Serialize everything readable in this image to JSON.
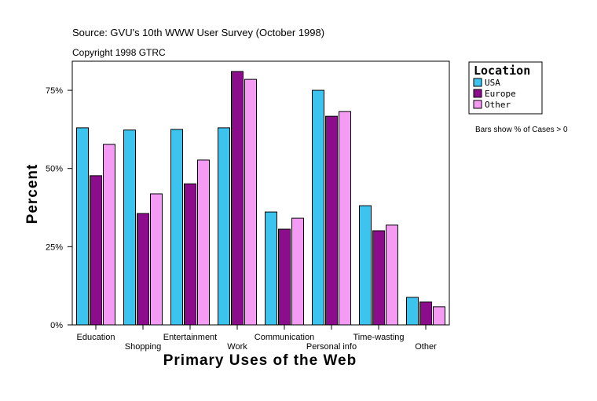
{
  "chart_data": {
    "type": "bar",
    "subtitle": "Source: GVU's 10th WWW User Survey (October 1998)",
    "copyright": "Copyright 1998 GTRC",
    "xlabel": "Primary Uses of the Web",
    "ylabel": "Percent",
    "legend_title": "Location",
    "note": "Bars show % of Cases > 0",
    "legend": "right",
    "categories": [
      "Education",
      "Shopping",
      "Entertainment",
      "Work",
      "Communication",
      "Personal info",
      "Time-wasting",
      "Other"
    ],
    "series": [
      {
        "name": "USA",
        "color": "#3cc4ee",
        "values": [
          63.0,
          62.3,
          62.5,
          63.0,
          36.1,
          75.0,
          38.1,
          8.8
        ]
      },
      {
        "name": "Europe",
        "color": "#8b0d8b",
        "values": [
          47.7,
          35.6,
          45.1,
          81.0,
          30.6,
          66.7,
          30.1,
          7.3
        ]
      },
      {
        "name": "Other",
        "color": "#f49cf4",
        "values": [
          57.7,
          41.9,
          52.7,
          78.5,
          34.1,
          68.2,
          31.9,
          5.8
        ]
      }
    ],
    "ylim": [
      0,
      84.3
    ],
    "yticks": [
      {
        "value": 0,
        "label": "0%"
      },
      {
        "value": 25,
        "label": "25%"
      },
      {
        "value": 50,
        "label": "50%"
      },
      {
        "value": 75,
        "label": "75%"
      }
    ]
  }
}
